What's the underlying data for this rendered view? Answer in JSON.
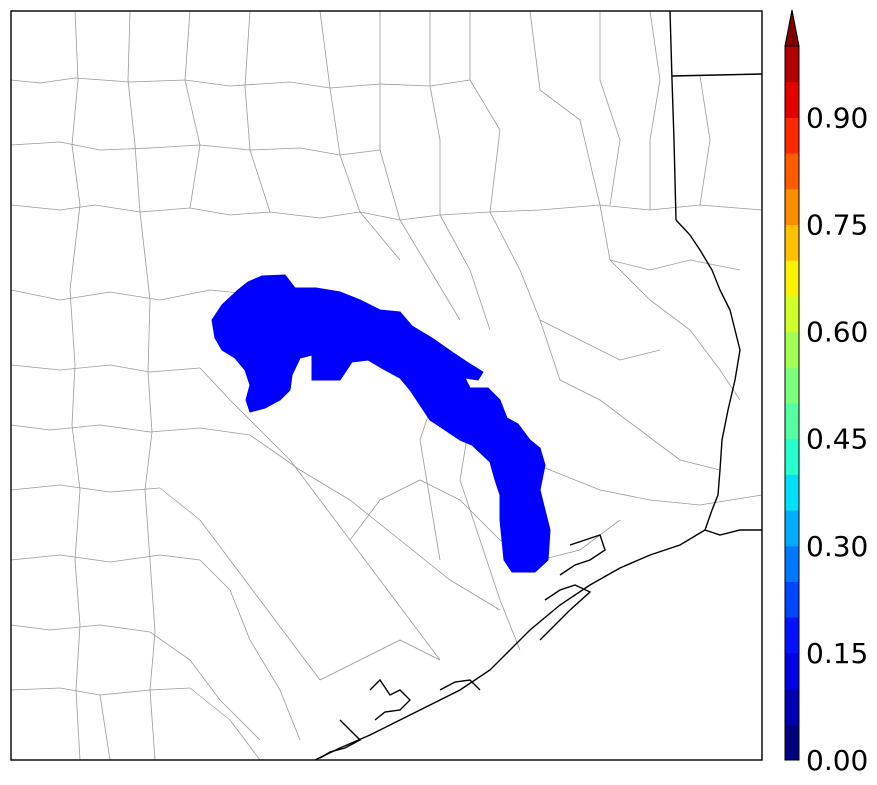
{
  "map": {
    "region": "Southeast Texas",
    "county_lines": "thin gray",
    "state_and_coast_lines": "black",
    "field_value_level": 0.1
  },
  "colorbar": {
    "min": 0.0,
    "max": 1.0,
    "step": 0.05,
    "extend": "max",
    "colormap": "jet",
    "tick_labels": [
      "0.00",
      "0.15",
      "0.30",
      "0.45",
      "0.60",
      "0.75",
      "0.90"
    ],
    "tick_values": [
      0.0,
      0.15,
      0.3,
      0.45,
      0.6,
      0.75,
      0.9
    ]
  },
  "colors": {
    "shaded_area": "#0000ff",
    "county_line": "#9a9a9a",
    "coast_line": "#000000",
    "band_colors": [
      "#00007f",
      "#0000b2",
      "#0000e5",
      "#0011ff",
      "#0045ff",
      "#0078ff",
      "#00acff",
      "#00e0f9",
      "#28ffce",
      "#54ffa4",
      "#7dff7a",
      "#a4ff54",
      "#ceff28",
      "#f9f200",
      "#ffc000",
      "#ff8d00",
      "#ff5b00",
      "#ff2800",
      "#e50000",
      "#b20000",
      "#7f0000"
    ]
  }
}
